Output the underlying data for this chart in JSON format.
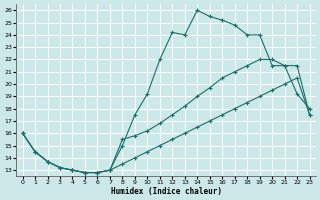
{
  "xlabel": "Humidex (Indice chaleur)",
  "bg_color": "#cce8e8",
  "grid_color": "#ffffff",
  "line_color": "#1a6e6a",
  "xlim": [
    -0.5,
    23.5
  ],
  "ylim": [
    12.5,
    26.5
  ],
  "xticks": [
    0,
    1,
    2,
    3,
    4,
    5,
    6,
    7,
    8,
    9,
    10,
    11,
    12,
    13,
    14,
    15,
    16,
    17,
    18,
    19,
    20,
    21,
    22,
    23
  ],
  "yticks": [
    13,
    14,
    15,
    16,
    17,
    18,
    19,
    20,
    21,
    22,
    23,
    24,
    25,
    26
  ],
  "line1_x": [
    0,
    1,
    2,
    3,
    4,
    5,
    6,
    7,
    8,
    9,
    10,
    11,
    12,
    13,
    14,
    15,
    16,
    17,
    18,
    19,
    20,
    21,
    22,
    23
  ],
  "line1_y": [
    16.0,
    14.5,
    13.7,
    13.2,
    13.0,
    12.8,
    12.8,
    13.0,
    13.5,
    14.0,
    14.5,
    15.0,
    15.5,
    16.0,
    16.5,
    17.0,
    17.5,
    18.0,
    18.5,
    19.0,
    19.5,
    20.0,
    20.5,
    17.5
  ],
  "line2_x": [
    0,
    1,
    2,
    3,
    4,
    5,
    6,
    7,
    8,
    9,
    10,
    11,
    12,
    13,
    14,
    15,
    16,
    17,
    18,
    19,
    20,
    21,
    22,
    23
  ],
  "line2_y": [
    16.0,
    14.5,
    13.7,
    13.2,
    13.0,
    12.8,
    12.8,
    13.0,
    15.0,
    17.5,
    19.2,
    22.0,
    24.2,
    24.0,
    26.0,
    25.5,
    25.2,
    24.8,
    24.0,
    24.0,
    21.5,
    21.5,
    19.2,
    18.0
  ],
  "line3_x": [
    0,
    1,
    2,
    3,
    4,
    5,
    6,
    7,
    8,
    9,
    10,
    11,
    12,
    13,
    14,
    15,
    16,
    17,
    18,
    19,
    20,
    21,
    22,
    23
  ],
  "line3_y": [
    16.0,
    14.5,
    13.7,
    13.2,
    13.0,
    12.8,
    12.8,
    13.0,
    15.5,
    15.8,
    16.2,
    16.8,
    17.5,
    18.2,
    19.0,
    19.7,
    20.5,
    21.0,
    21.5,
    22.0,
    22.0,
    21.5,
    21.5,
    17.5
  ]
}
